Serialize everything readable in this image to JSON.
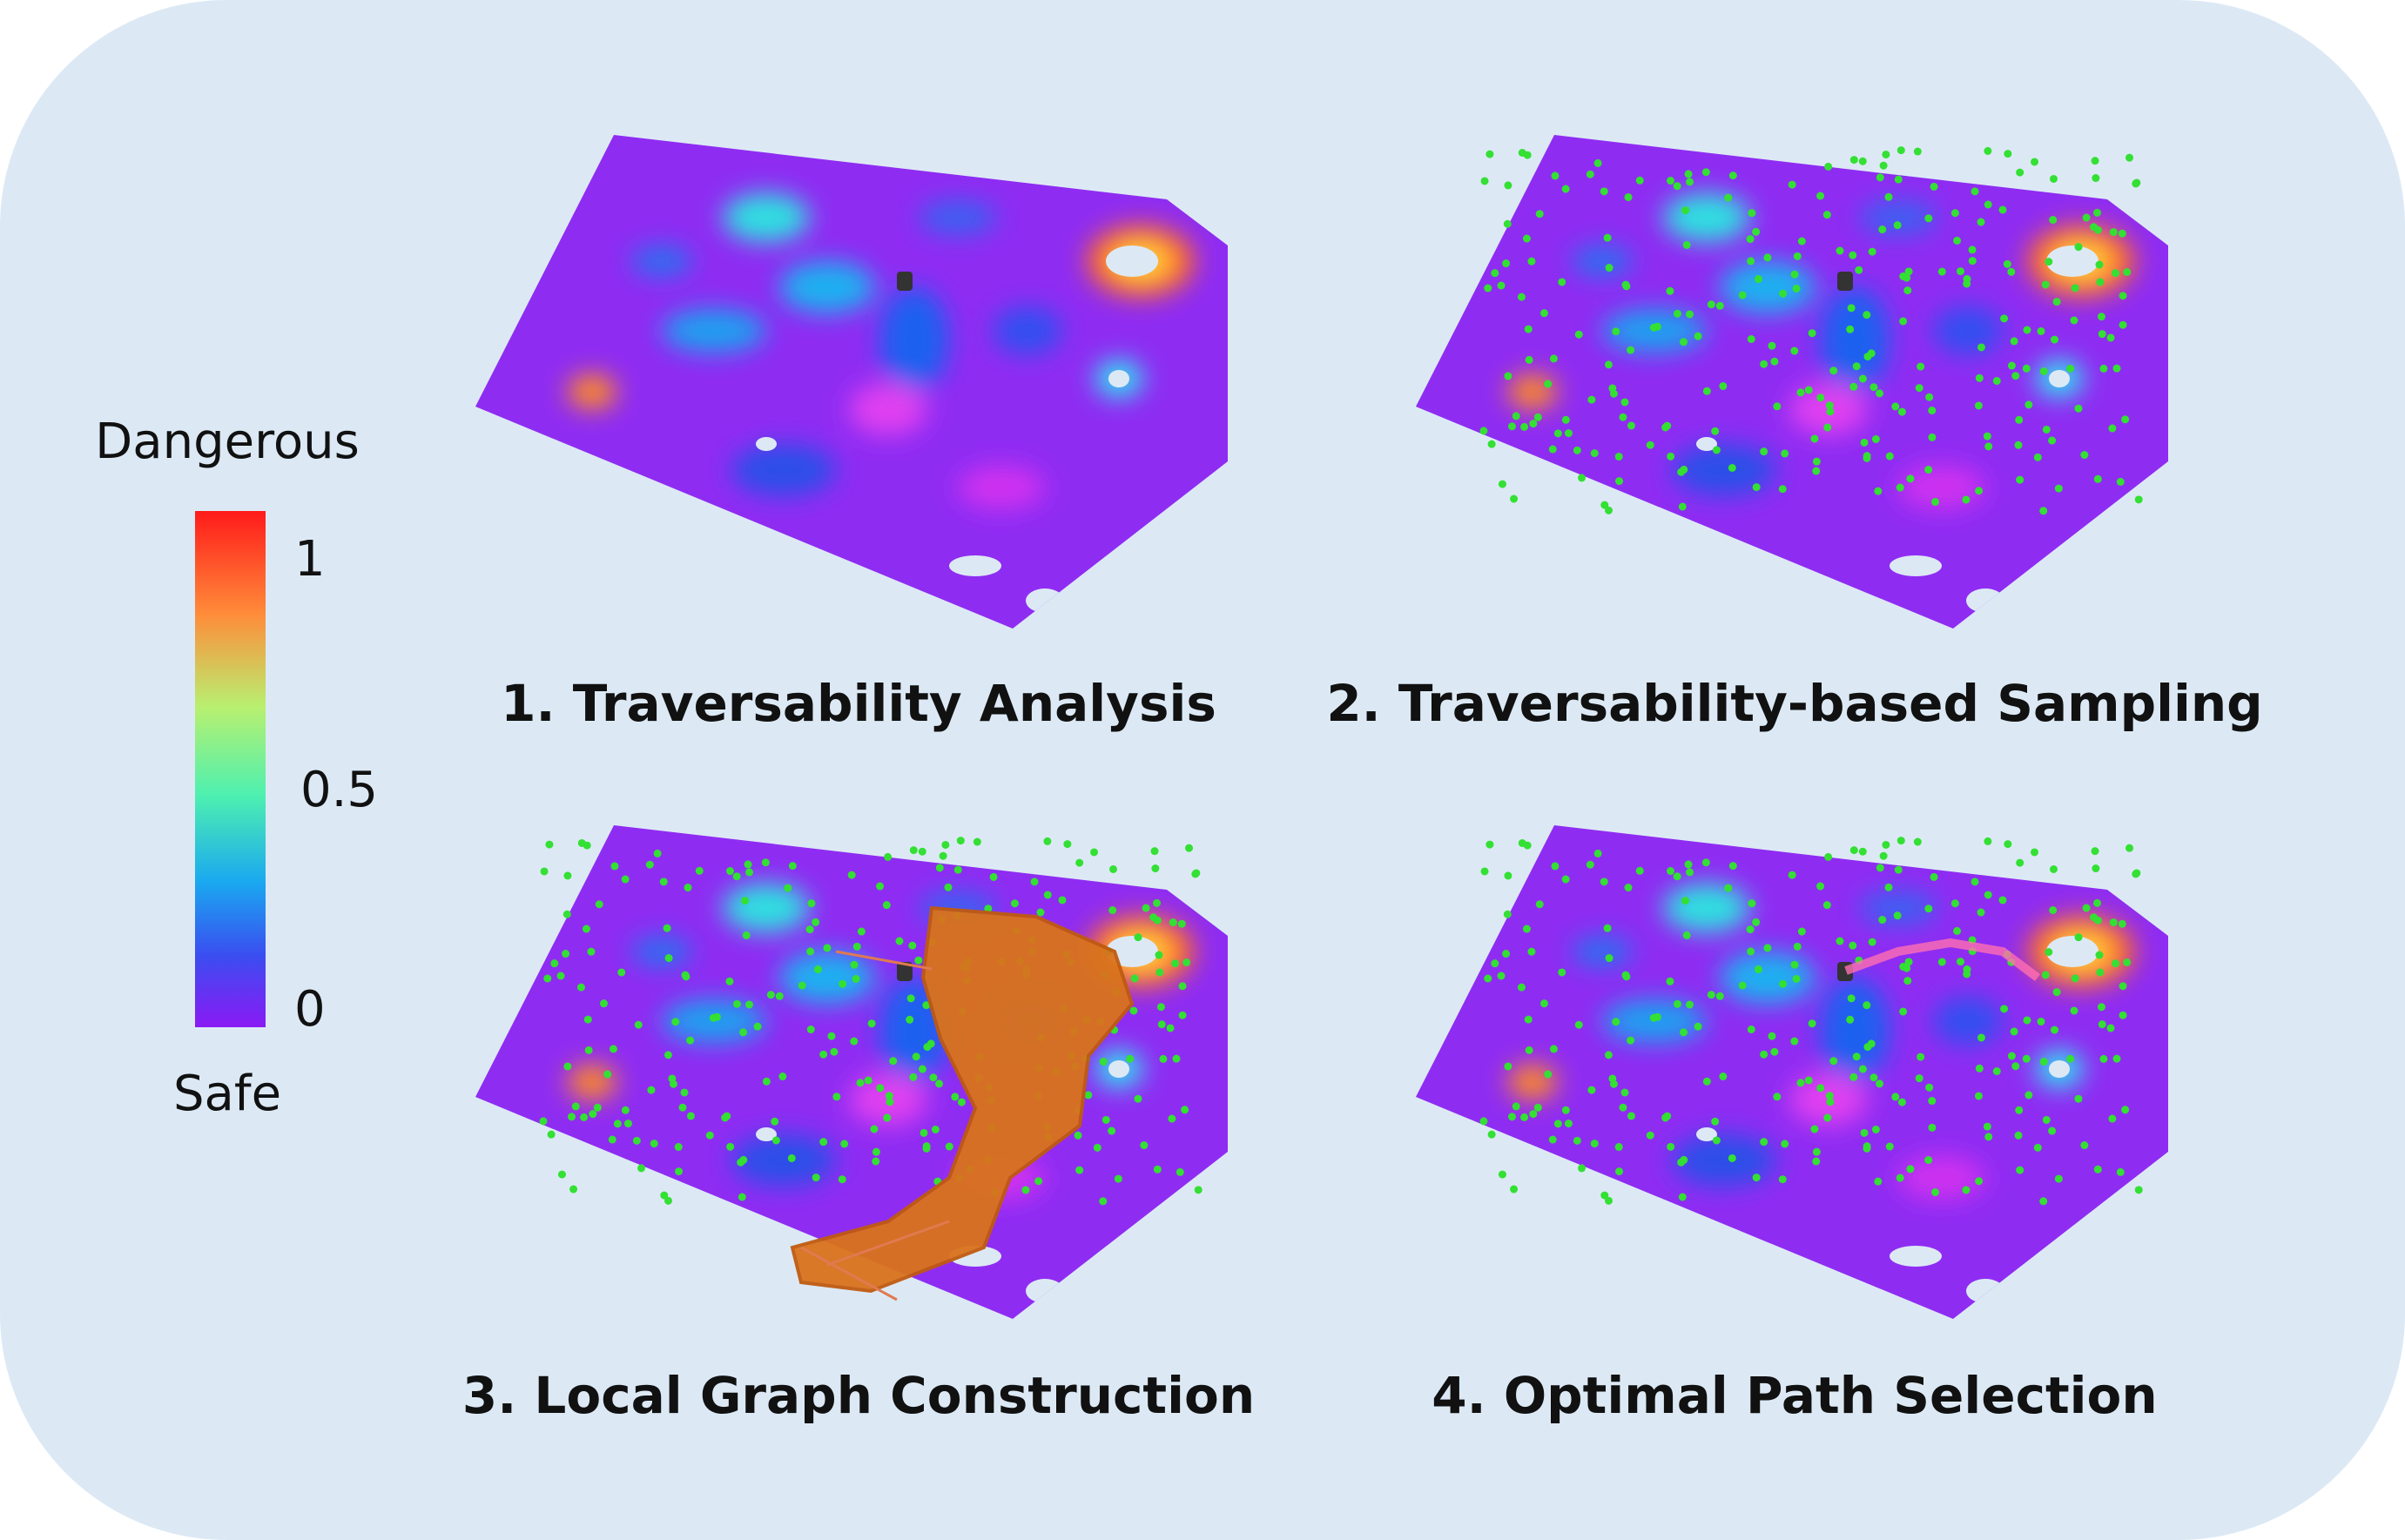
{
  "colorbar": {
    "top_label": "Dangerous",
    "bottom_label": "Safe",
    "ticks": [
      "1",
      "0.5",
      "0"
    ]
  },
  "panels": [
    {
      "title": "1. Traversability Analysis"
    },
    {
      "title": "2. Traversability-based Sampling"
    },
    {
      "title": "3. Local Graph Construction"
    },
    {
      "title": "4. Optimal Path Selection"
    }
  ]
}
